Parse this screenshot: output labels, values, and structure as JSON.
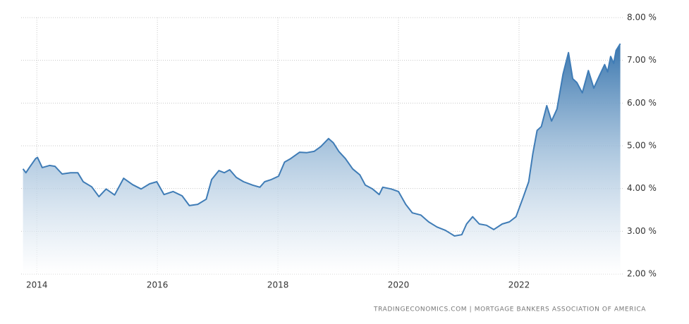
{
  "chart_data": {
    "type": "area",
    "source": "TRADINGECONOMICS.COM  |  MORTGAGE BANKERS ASSOCIATION OF AMERICA",
    "x": [
      2013.77,
      2013.82,
      2013.88,
      2013.98,
      2014.01,
      2014.09,
      2014.21,
      2014.3,
      2014.42,
      2014.56,
      2014.68,
      2014.77,
      2014.91,
      2015.03,
      2015.15,
      2015.29,
      2015.44,
      2015.59,
      2015.73,
      2015.87,
      2015.99,
      2016.11,
      2016.26,
      2016.41,
      2016.53,
      2016.67,
      2016.81,
      2016.9,
      2017.02,
      2017.11,
      2017.2,
      2017.31,
      2017.43,
      2017.58,
      2017.7,
      2017.78,
      2017.89,
      2018.01,
      2018.11,
      2018.21,
      2018.36,
      2018.48,
      2018.6,
      2018.71,
      2018.84,
      2018.92,
      2019.01,
      2019.12,
      2019.24,
      2019.36,
      2019.45,
      2019.57,
      2019.68,
      2019.74,
      2019.88,
      2020.0,
      2020.12,
      2020.23,
      2020.37,
      2020.5,
      2020.64,
      2020.78,
      2020.93,
      2021.05,
      2021.13,
      2021.23,
      2021.34,
      2021.46,
      2021.58,
      2021.72,
      2021.84,
      2021.95,
      2022.07,
      2022.16,
      2022.23,
      2022.3,
      2022.37,
      2022.46,
      2022.54,
      2022.63,
      2022.73,
      2022.82,
      2022.89,
      2022.96,
      2023.05,
      2023.15,
      2023.24,
      2023.33,
      2023.42,
      2023.47,
      2023.52,
      2023.57,
      2023.61,
      2023.68
    ],
    "series": [
      {
        "color": "#3f7cb6",
        "values": [
          4.46,
          4.37,
          4.5,
          4.7,
          4.73,
          4.49,
          4.54,
          4.52,
          4.34,
          4.37,
          4.37,
          4.16,
          4.04,
          3.81,
          3.99,
          3.85,
          4.24,
          4.09,
          3.99,
          4.11,
          4.16,
          3.86,
          3.93,
          3.83,
          3.6,
          3.63,
          3.75,
          4.21,
          4.42,
          4.37,
          4.44,
          4.26,
          4.16,
          4.08,
          4.03,
          4.16,
          4.21,
          4.29,
          4.62,
          4.7,
          4.85,
          4.84,
          4.87,
          4.98,
          5.17,
          5.07,
          4.87,
          4.7,
          4.46,
          4.32,
          4.08,
          3.99,
          3.86,
          4.03,
          3.99,
          3.93,
          3.63,
          3.43,
          3.38,
          3.22,
          3.1,
          3.02,
          2.89,
          2.92,
          3.17,
          3.34,
          3.17,
          3.14,
          3.04,
          3.17,
          3.22,
          3.34,
          3.8,
          4.16,
          4.82,
          5.36,
          5.45,
          5.94,
          5.58,
          5.86,
          6.68,
          7.18,
          6.57,
          6.48,
          6.24,
          6.76,
          6.35,
          6.63,
          6.9,
          6.73,
          7.09,
          6.93,
          7.23,
          7.39
        ]
      }
    ],
    "xlim": [
      2013.74,
      2023.72
    ],
    "xticks": [
      2014,
      2016,
      2018,
      2020,
      2022
    ],
    "ylim": [
      2,
      8
    ],
    "yticks": [
      {
        "value": 2,
        "label": "2.00 %"
      },
      {
        "value": 3,
        "label": "3.00 %"
      },
      {
        "value": 4,
        "label": "4.00 %"
      },
      {
        "value": 5,
        "label": "5.00 %"
      },
      {
        "value": 6,
        "label": "6.00 %"
      },
      {
        "value": 7,
        "label": "7.00 %"
      },
      {
        "value": 8,
        "label": "8.00 %"
      }
    ],
    "grid": true
  }
}
